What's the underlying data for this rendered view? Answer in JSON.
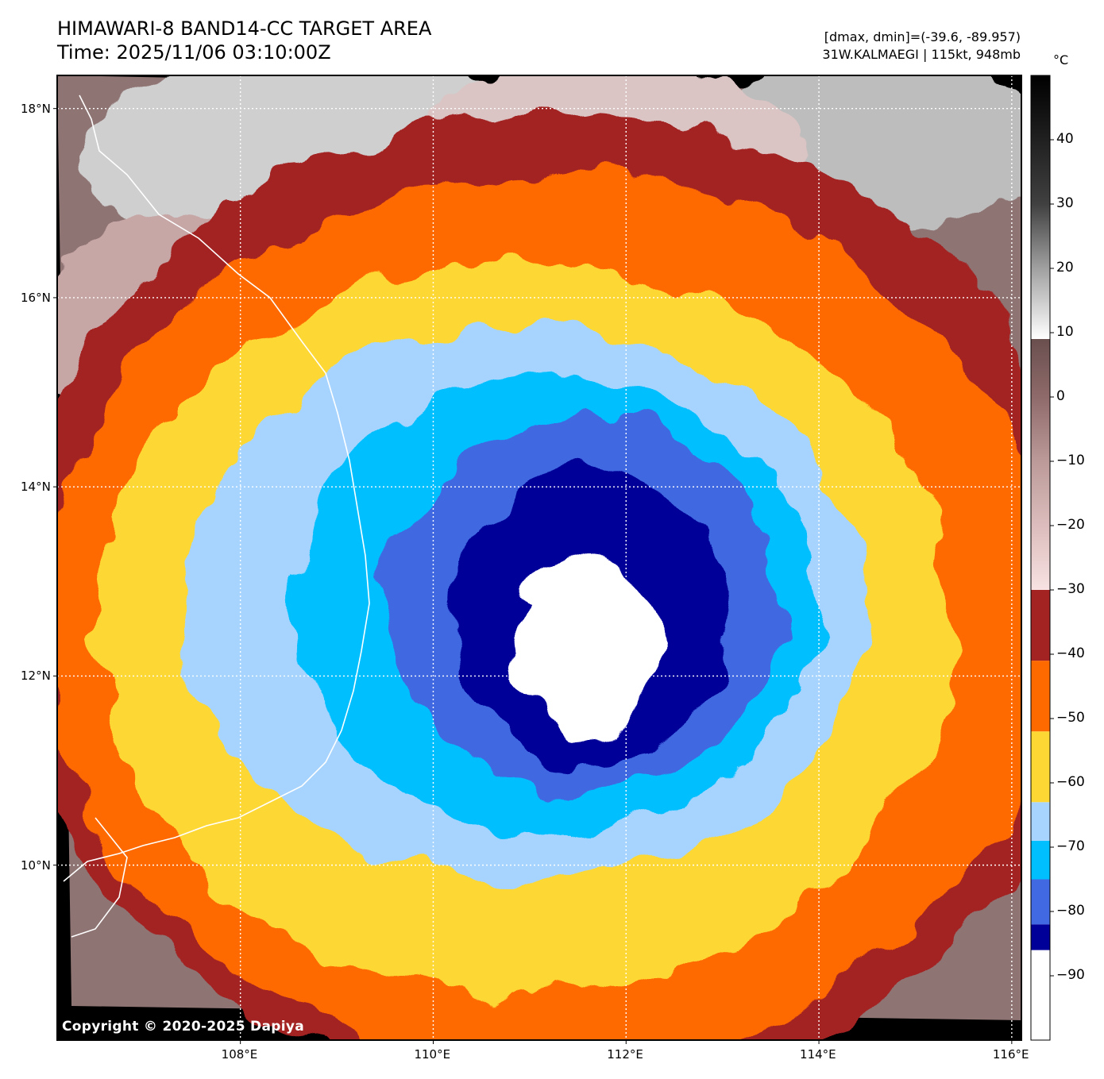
{
  "header": {
    "title_line1": "HIMAWARI-8 BAND14-CC TARGET AREA",
    "title_line2": "Time: 2025/11/06 03:10:00Z",
    "range_text": "[dmax, dmin]=(-39.6, -89.957)",
    "storm_text": "31W.KALMAEGI | 115kt, 948mb"
  },
  "colorbar": {
    "unit": "°C",
    "ticks": [
      "40",
      "30",
      "20",
      "10",
      "0",
      "−10",
      "−20",
      "−30",
      "−40",
      "−50",
      "−60",
      "−70",
      "−80",
      "−90"
    ],
    "tick_values": [
      40,
      30,
      20,
      10,
      0,
      -10,
      -20,
      -30,
      -40,
      -50,
      -60,
      -70,
      -80,
      -90
    ],
    "range": [
      -100,
      50
    ],
    "bands": [
      {
        "from": -100,
        "to": -86,
        "color": "#ffffff"
      },
      {
        "from": -86,
        "to": -82,
        "color": "#000099"
      },
      {
        "from": -82,
        "to": -75,
        "color": "#4169e1"
      },
      {
        "from": -75,
        "to": -69,
        "color": "#00bfff"
      },
      {
        "from": -69,
        "to": -63,
        "color": "#a6d4ff"
      },
      {
        "from": -63,
        "to": -52,
        "color": "#fdd835"
      },
      {
        "from": -52,
        "to": -41,
        "color": "#ff6a00"
      },
      {
        "from": -41,
        "to": -30,
        "color": "#a32222"
      }
    ],
    "gradient": [
      {
        "v": -30,
        "color": "#f8e2e2"
      },
      {
        "v": -20,
        "color": "#dcbcbc"
      },
      {
        "v": -10,
        "color": "#bc9a9a"
      },
      {
        "v": 0,
        "color": "#8f6a6a"
      },
      {
        "v": 9,
        "color": "#6a4f4f"
      },
      {
        "v": 9.01,
        "color": "#ffffff"
      },
      {
        "v": 20,
        "color": "#a0a0a0"
      },
      {
        "v": 30,
        "color": "#404040"
      },
      {
        "v": 50,
        "color": "#000000"
      }
    ]
  },
  "map": {
    "lat_labels": [
      "18°N",
      "16°N",
      "14°N",
      "12°N",
      "10°N"
    ],
    "lat_values": [
      18,
      16,
      14,
      12,
      10
    ],
    "lon_labels": [
      "108°E",
      "110°E",
      "112°E",
      "114°E",
      "116°E"
    ],
    "lon_values": [
      108,
      110,
      112,
      114,
      116
    ],
    "extent": {
      "lon_min": 106.1,
      "lon_max": 116.1,
      "lat_min": 8.15,
      "lat_max": 18.35
    },
    "copyright": "Copyright © 2020-2025 Dapiya",
    "storm_center": {
      "lon": 111.35,
      "lat": 13.15
    }
  }
}
